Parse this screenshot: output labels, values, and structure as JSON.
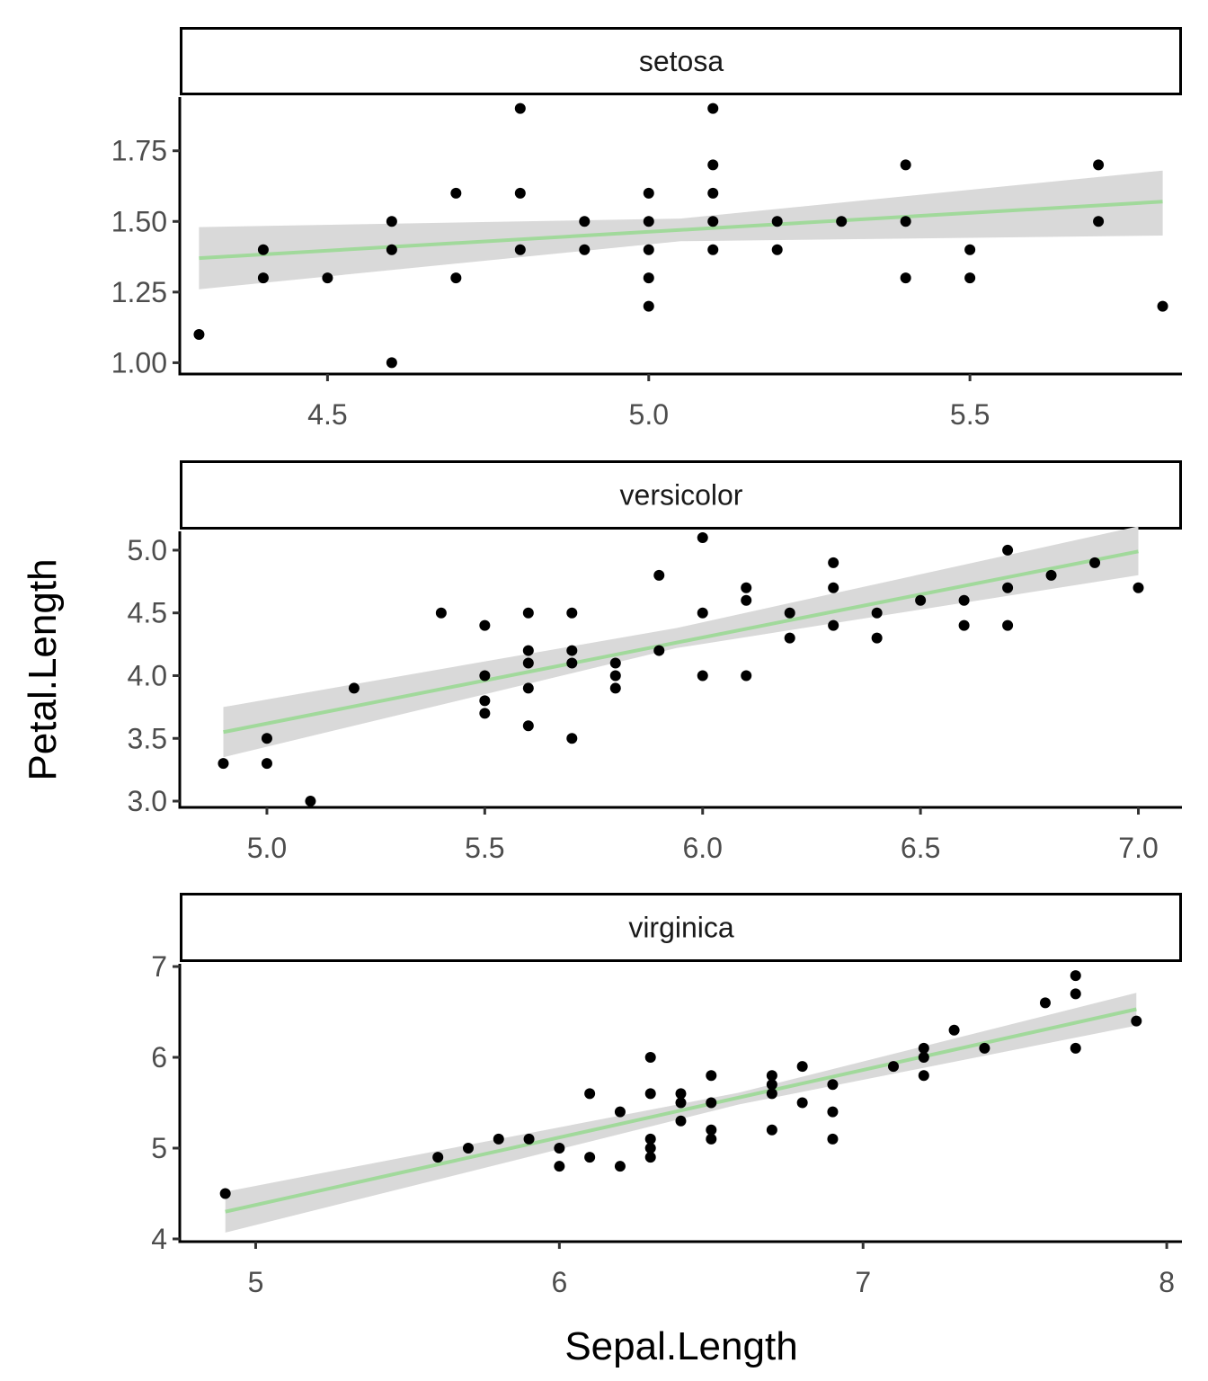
{
  "chart_data": {
    "type": "scatter",
    "layout": "facet_wrap, 3 panels stacked vertically, free scales",
    "xlabel": "Sepal.Length",
    "ylabel": "Petal.Length",
    "colors": {
      "points": "#000000",
      "fit_line": "#a1d99b",
      "ribbon": "#d9d9d9"
    },
    "grid": false,
    "legend": "none",
    "panels": [
      {
        "strip_label": "setosa",
        "xlim": [
          4.27,
          5.83
        ],
        "ylim": [
          0.96,
          1.94
        ],
        "xticks": [
          4.5,
          5.0,
          5.5
        ],
        "xtick_labels": [
          "4.5",
          "5.0",
          "5.5"
        ],
        "yticks": [
          1.0,
          1.25,
          1.5,
          1.75
        ],
        "ytick_labels": [
          "1.00",
          "1.25",
          "1.50",
          "1.75"
        ],
        "fit": {
          "x": [
            4.3,
            5.8
          ],
          "y": [
            1.37,
            1.57
          ]
        },
        "ribbon": {
          "x": [
            4.3,
            5.05,
            5.8
          ],
          "lower": [
            1.26,
            1.43,
            1.45
          ],
          "upper": [
            1.48,
            1.51,
            1.68
          ]
        },
        "points": [
          [
            4.3,
            1.1
          ],
          [
            4.4,
            1.3
          ],
          [
            4.4,
            1.4
          ],
          [
            4.5,
            1.3
          ],
          [
            4.6,
            1.0
          ],
          [
            4.6,
            1.4
          ],
          [
            4.6,
            1.5
          ],
          [
            4.7,
            1.3
          ],
          [
            4.7,
            1.6
          ],
          [
            4.8,
            1.4
          ],
          [
            4.8,
            1.6
          ],
          [
            4.8,
            1.9
          ],
          [
            4.9,
            1.4
          ],
          [
            4.9,
            1.5
          ],
          [
            5.0,
            1.2
          ],
          [
            5.0,
            1.3
          ],
          [
            5.0,
            1.4
          ],
          [
            5.0,
            1.5
          ],
          [
            5.0,
            1.6
          ],
          [
            5.1,
            1.4
          ],
          [
            5.1,
            1.5
          ],
          [
            5.1,
            1.6
          ],
          [
            5.1,
            1.7
          ],
          [
            5.1,
            1.9
          ],
          [
            5.2,
            1.4
          ],
          [
            5.2,
            1.5
          ],
          [
            5.3,
            1.5
          ],
          [
            5.4,
            1.3
          ],
          [
            5.4,
            1.5
          ],
          [
            5.4,
            1.7
          ],
          [
            5.5,
            1.3
          ],
          [
            5.5,
            1.4
          ],
          [
            5.7,
            1.5
          ],
          [
            5.7,
            1.7
          ],
          [
            5.8,
            1.2
          ]
        ]
      },
      {
        "strip_label": "versicolor",
        "xlim": [
          4.8,
          7.1
        ],
        "ylim": [
          2.95,
          5.15
        ],
        "xticks": [
          5.0,
          5.5,
          6.0,
          6.5,
          7.0
        ],
        "xtick_labels": [
          "5.0",
          "5.5",
          "6.0",
          "6.5",
          "7.0"
        ],
        "yticks": [
          3.0,
          3.5,
          4.0,
          4.5,
          5.0
        ],
        "ytick_labels": [
          "3.0",
          "3.5",
          "4.0",
          "4.5",
          "5.0"
        ],
        "fit": {
          "x": [
            4.9,
            7.0
          ],
          "y": [
            3.55,
            4.99
          ]
        },
        "ribbon": {
          "x": [
            4.9,
            5.94,
            7.0
          ],
          "lower": [
            3.35,
            4.22,
            4.8
          ],
          "upper": [
            3.75,
            4.38,
            5.19
          ]
        },
        "points": [
          [
            4.9,
            3.3
          ],
          [
            5.0,
            3.3
          ],
          [
            5.0,
            3.5
          ],
          [
            5.1,
            3.0
          ],
          [
            5.2,
            3.9
          ],
          [
            5.4,
            4.5
          ],
          [
            5.5,
            3.7
          ],
          [
            5.5,
            3.8
          ],
          [
            5.5,
            4.0
          ],
          [
            5.5,
            4.4
          ],
          [
            5.6,
            3.6
          ],
          [
            5.6,
            3.9
          ],
          [
            5.6,
            4.1
          ],
          [
            5.6,
            4.2
          ],
          [
            5.6,
            4.5
          ],
          [
            5.7,
            3.5
          ],
          [
            5.7,
            4.1
          ],
          [
            5.7,
            4.2
          ],
          [
            5.7,
            4.5
          ],
          [
            5.8,
            3.9
          ],
          [
            5.8,
            4.0
          ],
          [
            5.8,
            4.1
          ],
          [
            5.9,
            4.2
          ],
          [
            5.9,
            4.8
          ],
          [
            6.0,
            4.0
          ],
          [
            6.0,
            4.5
          ],
          [
            6.0,
            5.1
          ],
          [
            6.1,
            4.0
          ],
          [
            6.1,
            4.6
          ],
          [
            6.1,
            4.7
          ],
          [
            6.2,
            4.3
          ],
          [
            6.2,
            4.5
          ],
          [
            6.3,
            4.4
          ],
          [
            6.3,
            4.7
          ],
          [
            6.3,
            4.9
          ],
          [
            6.4,
            4.3
          ],
          [
            6.4,
            4.5
          ],
          [
            6.5,
            4.6
          ],
          [
            6.6,
            4.4
          ],
          [
            6.6,
            4.6
          ],
          [
            6.7,
            4.4
          ],
          [
            6.7,
            4.7
          ],
          [
            6.7,
            5.0
          ],
          [
            6.8,
            4.8
          ],
          [
            6.9,
            4.9
          ],
          [
            7.0,
            4.7
          ]
        ]
      },
      {
        "strip_label": "virginica",
        "xlim": [
          4.75,
          8.05
        ],
        "ylim": [
          3.97,
          7.03
        ],
        "xticks": [
          5,
          6,
          7,
          8
        ],
        "xtick_labels": [
          "5",
          "6",
          "7",
          "8"
        ],
        "yticks": [
          4,
          5,
          6,
          7
        ],
        "ytick_labels": [
          "4",
          "5",
          "6",
          "7"
        ],
        "fit": {
          "x": [
            4.9,
            7.9
          ],
          "y": [
            4.3,
            6.53
          ]
        },
        "ribbon": {
          "x": [
            4.9,
            6.59,
            7.9
          ],
          "lower": [
            4.07,
            5.48,
            6.35
          ],
          "upper": [
            4.52,
            5.61,
            6.71
          ]
        },
        "points": [
          [
            4.9,
            4.5
          ],
          [
            5.6,
            4.9
          ],
          [
            5.7,
            5.0
          ],
          [
            5.8,
            5.1
          ],
          [
            5.9,
            5.1
          ],
          [
            6.0,
            4.8
          ],
          [
            6.0,
            5.0
          ],
          [
            6.1,
            4.9
          ],
          [
            6.1,
            5.6
          ],
          [
            6.2,
            4.8
          ],
          [
            6.2,
            5.4
          ],
          [
            6.3,
            4.9
          ],
          [
            6.3,
            5.0
          ],
          [
            6.3,
            5.1
          ],
          [
            6.3,
            5.6
          ],
          [
            6.3,
            6.0
          ],
          [
            6.4,
            5.3
          ],
          [
            6.4,
            5.5
          ],
          [
            6.4,
            5.6
          ],
          [
            6.5,
            5.1
          ],
          [
            6.5,
            5.2
          ],
          [
            6.5,
            5.5
          ],
          [
            6.5,
            5.8
          ],
          [
            6.7,
            5.2
          ],
          [
            6.7,
            5.6
          ],
          [
            6.7,
            5.7
          ],
          [
            6.7,
            5.8
          ],
          [
            6.8,
            5.5
          ],
          [
            6.8,
            5.9
          ],
          [
            6.9,
            5.1
          ],
          [
            6.9,
            5.4
          ],
          [
            6.9,
            5.7
          ],
          [
            7.1,
            5.9
          ],
          [
            7.2,
            5.8
          ],
          [
            7.2,
            6.0
          ],
          [
            7.2,
            6.1
          ],
          [
            7.3,
            6.3
          ],
          [
            7.4,
            6.1
          ],
          [
            7.6,
            6.6
          ],
          [
            7.7,
            6.1
          ],
          [
            7.7,
            6.7
          ],
          [
            7.7,
            6.9
          ],
          [
            7.9,
            6.4
          ]
        ]
      }
    ]
  }
}
